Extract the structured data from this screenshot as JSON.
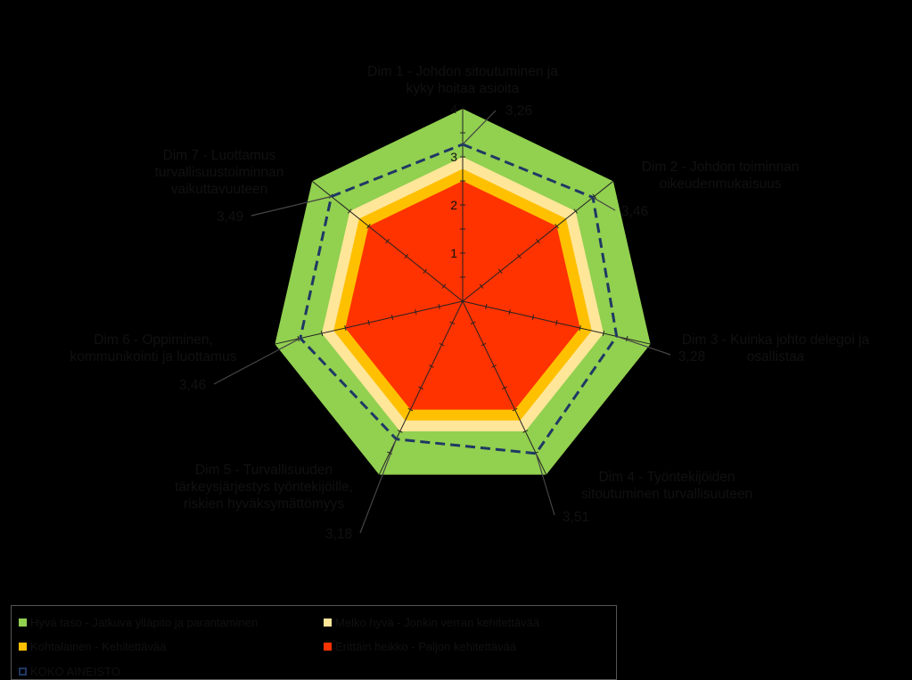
{
  "chart_data": {
    "type": "radar",
    "axis_range": [
      0,
      4
    ],
    "ticks": [
      "1",
      "2",
      "3",
      "4"
    ],
    "axes": [
      {
        "label_lines": [
          "Dim 1 - Johdon sitoutuminen ja",
          "kyky hoitaa asioita"
        ],
        "value": 3.26,
        "value_label": "3,26"
      },
      {
        "label_lines": [
          "Dim 2 - Johdon toiminnan",
          "oikeudenmukaisuus"
        ],
        "value": 3.46,
        "value_label": "3,46"
      },
      {
        "label_lines": [
          "Dim 3 - Kuinka johto delegoi ja",
          "osallistaa"
        ],
        "value": 3.28,
        "value_label": "3,28"
      },
      {
        "label_lines": [
          "Dim 4 - Työntekijöiden",
          "sitoutuminen turvallisuuteen"
        ],
        "value": 3.51,
        "value_label": "3,51"
      },
      {
        "label_lines": [
          "Dim 5 - Turvallisuuden",
          "tärkeysjärjestys työntekijöille,",
          "riskien hyväksymättömyys"
        ],
        "value": 3.18,
        "value_label": "3,18"
      },
      {
        "label_lines": [
          "Dim 6 - Oppiminen,",
          "kommunikointi ja luottamus"
        ],
        "value": 3.46,
        "value_label": "3,46"
      },
      {
        "label_lines": [
          "Dim 7 - Luottamus",
          "turvallisuustoiminnan",
          "vaikuttavuuteen"
        ],
        "value": 3.49,
        "value_label": "3,49"
      }
    ],
    "bands": [
      {
        "name": "Hyvä taso - Jatkuva ylläpito ja parantaminen",
        "from": 3.0,
        "to": 4.0,
        "color": "#92d050"
      },
      {
        "name": "Melko hyvä - Jonkin verran kehitettävää",
        "from": 2.75,
        "to": 3.0,
        "color": "#ffe699"
      },
      {
        "name": "Kohtalainen - Kehitettävää",
        "from": 2.5,
        "to": 2.75,
        "color": "#ffc000"
      },
      {
        "name": "Erittäin heikko - Paljon kehitettävää",
        "from": 0,
        "to": 2.5,
        "color": "#ff3300"
      }
    ],
    "series": [
      {
        "name": "KOKO AINEISTO",
        "values": [
          3.26,
          3.46,
          3.28,
          3.51,
          3.18,
          3.46,
          3.49
        ],
        "color": "#1f3864",
        "style": "dashed"
      }
    ]
  },
  "legend": {
    "items": [
      {
        "label": "Hyvä taso - Jatkuva ylläpito ja parantaminen",
        "color": "#92d050"
      },
      {
        "label": "Melko hyvä - Jonkin verran kehitettävää",
        "color": "#ffe699"
      },
      {
        "label": "Kohtalainen - Kehitettävää",
        "color": "#ffc000"
      },
      {
        "label": "Erittäin heikko - Paljon kehitettävää",
        "color": "#ff3300"
      },
      {
        "label": "KOKO AINEISTO",
        "color": "#1f3864"
      }
    ]
  }
}
